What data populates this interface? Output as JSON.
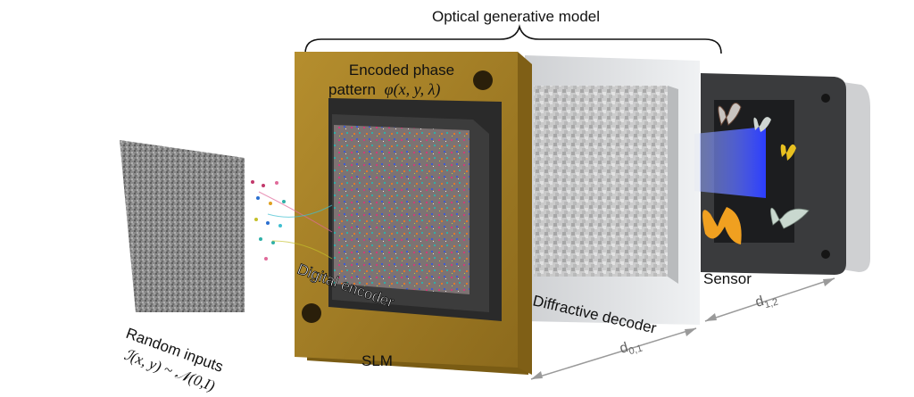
{
  "title": "Optical generative model",
  "labels": {
    "encoded_phase_line1": "Encoded phase",
    "encoded_phase_line2": "pattern",
    "phi_expr": "φ(x, y, λ)",
    "random_inputs": "Random inputs",
    "noise_expr": "ℐ(x, y) ~ 𝒩(0,I)",
    "digital_encoder": "Digital encoder",
    "slm": "SLM",
    "diffractive_decoder": "Diffractive decoder",
    "sensor": "Sensor",
    "d01": "d",
    "d01_sub": "0,1",
    "d12": "d",
    "d12_sub": "1,2"
  },
  "colors": {
    "slm_frame": "#a47e22",
    "slm_frame_dark": "#7a5c14",
    "screen_dark": "#2a2a2a",
    "decoder_glass": "#d8dadc",
    "sensor_body": "#3a3b3d",
    "sensor_glow": "#3a4cff",
    "arrow_gray": "#9a9a9a"
  }
}
